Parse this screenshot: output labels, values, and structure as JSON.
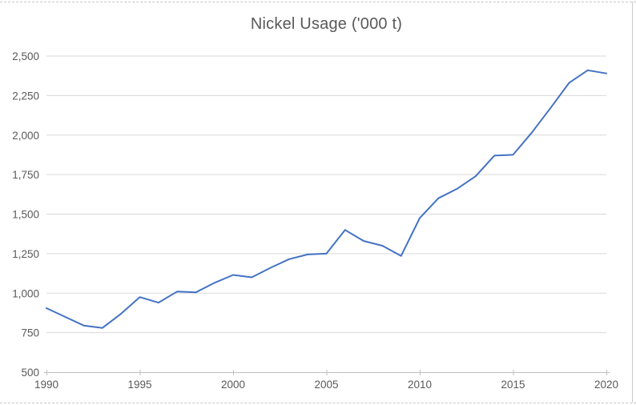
{
  "page": {
    "background": "#ffffff",
    "edge_color": "#c8c8c8"
  },
  "chart": {
    "title": "Nickel Usage ('000 t)",
    "colors": {
      "line": "#4472c4",
      "gridline": "#d9d9d9",
      "axis": "#bfbfbf",
      "tick": "#bfbfbf",
      "label_text": "#595959",
      "title_text": "#595959"
    }
  },
  "chart_data": {
    "type": "line",
    "title": "Nickel Usage ('000 t)",
    "xlabel": "",
    "ylabel": "",
    "x": [
      1990,
      1991,
      1992,
      1993,
      1994,
      1995,
      1996,
      1997,
      1998,
      1999,
      2000,
      2001,
      2002,
      2003,
      2004,
      2005,
      2006,
      2007,
      2008,
      2009,
      2010,
      2011,
      2012,
      2013,
      2014,
      2015,
      2016,
      2017,
      2018,
      2019,
      2020
    ],
    "values": [
      905,
      850,
      795,
      780,
      870,
      975,
      940,
      1010,
      1005,
      1065,
      1115,
      1100,
      1160,
      1215,
      1245,
      1250,
      1400,
      1330,
      1300,
      1235,
      1475,
      1600,
      1660,
      1740,
      1870,
      1875,
      2015,
      2170,
      2330,
      2410,
      2390
    ],
    "xlim": [
      1990,
      2020
    ],
    "ylim": [
      500,
      2500
    ],
    "x_ticks": [
      1990,
      1995,
      2000,
      2005,
      2010,
      2015,
      2020
    ],
    "y_ticks": [
      500,
      750,
      1000,
      1250,
      1500,
      1750,
      2000,
      2250,
      2500
    ],
    "y_tick_labels": [
      "500",
      "750",
      "1,000",
      "1,250",
      "1,500",
      "1,750",
      "2,000",
      "2,250",
      "2,500"
    ],
    "grid": true,
    "legend": false,
    "series_name": "Nickel Usage"
  }
}
